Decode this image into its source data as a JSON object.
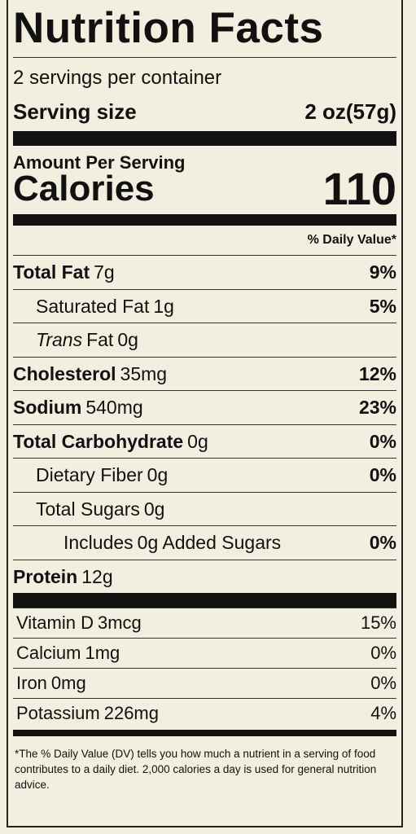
{
  "title": "Nutrition Facts",
  "servings": "2 servings per container",
  "serving_size": {
    "label": "Serving size",
    "value": "2 oz(57g)"
  },
  "amount_per_serving": "Amount Per Serving",
  "calories": {
    "label": "Calories",
    "value": 110
  },
  "daily_value_header": "% Daily Value*",
  "nutrients": [
    {
      "name": "Total Fat",
      "amount": "7g",
      "dv": "9%",
      "bold": true,
      "indent": 0
    },
    {
      "name": "Saturated Fat",
      "amount": "1g",
      "dv": "5%",
      "bold": false,
      "indent": 1
    },
    {
      "name_italic": "Trans",
      "name": "Fat",
      "amount": "0g",
      "bold": false,
      "indent": 1
    },
    {
      "name": "Cholesterol",
      "amount": "35mg",
      "dv": "12%",
      "bold": true,
      "indent": 0
    },
    {
      "name": "Sodium",
      "amount": "540mg",
      "dv": "23%",
      "bold": true,
      "indent": 0
    },
    {
      "name": "Total Carbohydrate",
      "amount": "0g",
      "dv": "0%",
      "bold": true,
      "indent": 0
    },
    {
      "name": "Dietary Fiber",
      "amount": "0g",
      "dv": "0%",
      "bold": false,
      "indent": 1
    },
    {
      "name": "Total Sugars",
      "amount": "0g",
      "bold": false,
      "indent": 1
    },
    {
      "name": "Includes",
      "amount": "0g Added Sugars",
      "dv": "0%",
      "bold": false,
      "indent": 2
    },
    {
      "name": "Protein",
      "amount": "12g",
      "bold": true,
      "indent": 0
    }
  ],
  "vitamins": [
    {
      "name": "Vitamin D",
      "amount": "3mcg",
      "dv": "15%"
    },
    {
      "name": "Calcium",
      "amount": "1mg",
      "dv": "0%"
    },
    {
      "name": "Iron",
      "amount": "0mg",
      "dv": "0%"
    },
    {
      "name": "Potassium",
      "amount": "226mg",
      "dv": "4%"
    }
  ],
  "footnote": "*The % Daily Value (DV) tells you how much a nutrient in a serving of food contributes to a daily diet. 2,000 calories a day is used for general nutrition advice."
}
